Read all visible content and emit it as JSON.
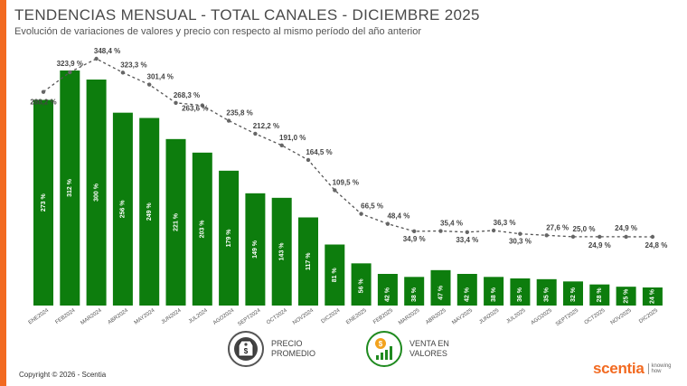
{
  "header": {
    "title": "TENDENCIAS MENSUAL - TOTAL CANALES -  DICIEMBRE 2025",
    "subtitle": "Evolución de variaciones de valores y precio con respecto al mismo período del año anterior"
  },
  "legend": {
    "precio_label": "PRECIO\nPROMEDIO",
    "precio_icon": "price-tag-icon",
    "venta_label": "VENTA EN\nVALORES",
    "venta_icon": "money-growth-icon"
  },
  "footer": {
    "copyright": "Copyright © 2026 - Scentia",
    "brand": "scentia",
    "brand_tagline": "knowing\nhow"
  },
  "colors": {
    "accent": "#f26a21",
    "bar": "#0d7d0d",
    "line": "#555555"
  },
  "chart_data": {
    "type": "bar",
    "categories": [
      "ENE2024",
      "FEB2024",
      "MAR2024",
      "ABR2024",
      "MAY2024",
      "JUN2024",
      "JUL2024",
      "AGO2024",
      "SEPT2024",
      "OCT2024",
      "NOV2024",
      "DIC2024",
      "ENE2025",
      "FEB2025",
      "MAR2025",
      "ABR2025",
      "MAY2025",
      "JUN2025",
      "JUL2025",
      "AGO2025",
      "SEPT2025",
      "OCT2025",
      "NOV2025",
      "DIC2025"
    ],
    "series": [
      {
        "name": "VENTA EN VALORES",
        "type": "bar",
        "values": [
          273,
          312,
          300,
          256,
          249,
          221,
          203,
          179,
          149,
          143,
          117,
          81,
          56,
          42,
          38,
          47,
          42,
          38,
          36,
          35,
          32,
          28,
          25,
          24
        ],
        "labels": [
          "273 %",
          "312 %",
          "300 %",
          "256 %",
          "249 %",
          "221 %",
          "203 %",
          "179 %",
          "149 %",
          "143 %",
          "117 %",
          "81 %",
          "56 %",
          "42 %",
          "38 %",
          "47 %",
          "42 %",
          "38 %",
          "36 %",
          "35 %",
          "32 %",
          "28 %",
          "25 %",
          "24 %"
        ]
      },
      {
        "name": "PRECIO PROMEDIO",
        "type": "line",
        "values": [
          288.2,
          323.9,
          348.4,
          323.3,
          301.4,
          268.3,
          263.6,
          235.8,
          212.2,
          191.0,
          164.5,
          109.5,
          66.5,
          48.4,
          34.9,
          35.4,
          33.4,
          36.3,
          30.3,
          27.6,
          25.0,
          24.9,
          24.9,
          24.8
        ],
        "labels": [
          "288,2 %",
          "323,9 %",
          "348,4 %",
          "323,3 %",
          "301,4 %",
          "268,3 %",
          "263,6 %",
          "235,8 %",
          "212,2 %",
          "191,0 %",
          "164,5 %",
          "109,5 %",
          "66,5 %",
          "48,4 %",
          "34,9 %",
          "35,4 %",
          "33,4 %",
          "36,3 %",
          "30,3 %",
          "27,6 %",
          "25,0 %",
          "24,9 %",
          "24,9 %",
          "24,8 %"
        ]
      }
    ],
    "ylim": [
      0,
      370
    ],
    "grid": false,
    "legend": "bottom-center"
  }
}
